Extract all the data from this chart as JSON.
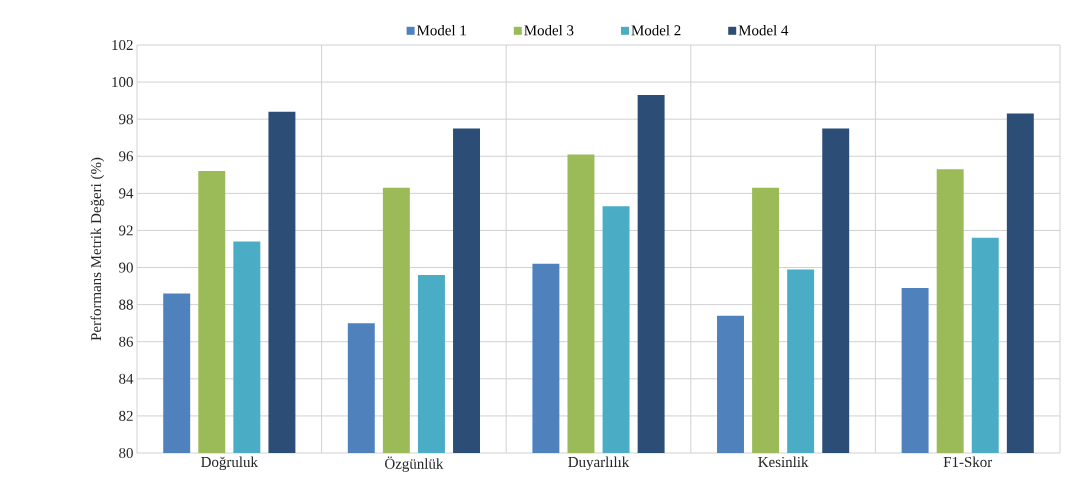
{
  "chart_data": {
    "type": "bar",
    "ylabel": "Performans Metrik Değeri (%)",
    "categories": [
      "Doğruluk",
      "Özgünlük",
      "Duyarlılık",
      "Kesinlik",
      "F1-Skor"
    ],
    "series": [
      {
        "name": "Model 1",
        "color": "#4f81bd",
        "values": [
          88.6,
          87.0,
          90.2,
          87.4,
          88.9
        ]
      },
      {
        "name": "Model 3",
        "color": "#9bbb59",
        "values": [
          95.2,
          94.3,
          96.1,
          94.3,
          95.3
        ]
      },
      {
        "name": "Model 2",
        "color": "#4bacc6",
        "values": [
          91.4,
          89.6,
          93.3,
          89.9,
          91.6
        ]
      },
      {
        "name": "Model 4",
        "color": "#2c4d75",
        "values": [
          98.4,
          97.5,
          99.3,
          97.5,
          98.3
        ]
      }
    ],
    "ylim": [
      80,
      102
    ],
    "yticks": [
      80,
      82,
      84,
      86,
      88,
      90,
      92,
      94,
      96,
      98,
      100,
      102
    ],
    "grid": true,
    "legend": "top"
  }
}
